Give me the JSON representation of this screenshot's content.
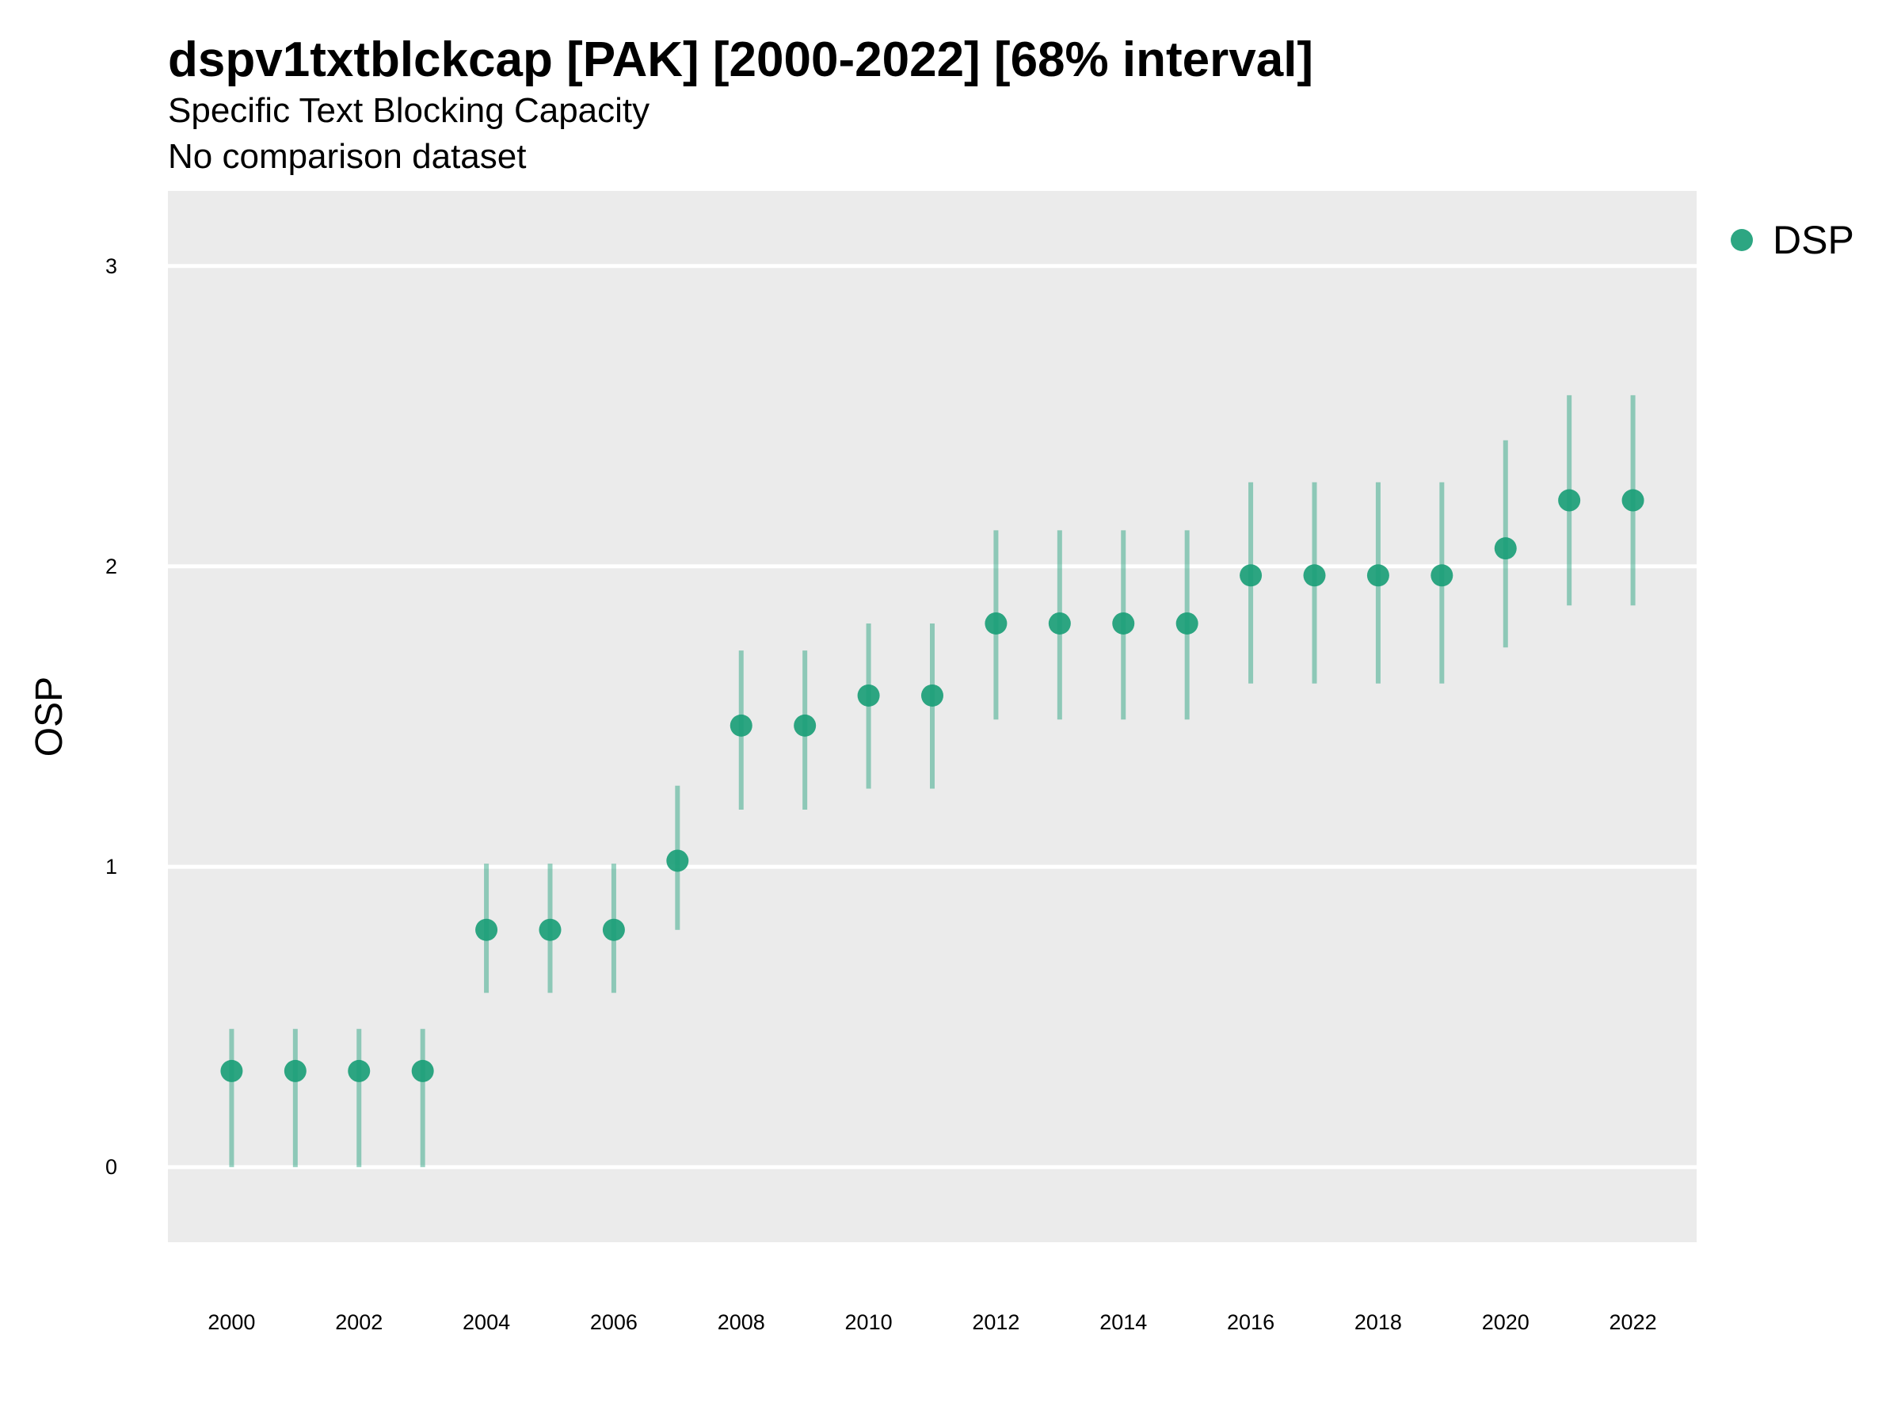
{
  "header": {
    "title": "dspv1txtblckcap [PAK] [2000-2022] [68% interval]",
    "subtitle": "Specific Text Blocking Capacity",
    "caption": "No comparison dataset"
  },
  "chart_data": {
    "type": "scatter",
    "title": "dspv1txtblckcap [PAK] [2000-2022] [68% interval]",
    "subtitle": "Specific Text Blocking Capacity",
    "caption": "No comparison dataset",
    "xlabel": "",
    "ylabel": "OSP",
    "xlim": [
      1999.0,
      2023.0
    ],
    "ylim": [
      -0.25,
      3.25
    ],
    "x_ticks": [
      2000,
      2002,
      2004,
      2006,
      2008,
      2010,
      2012,
      2014,
      2016,
      2018,
      2020,
      2022
    ],
    "y_ticks": [
      0,
      1,
      2,
      3
    ],
    "grid": true,
    "legend_position": "right",
    "colors": {
      "point": "#1b9e77",
      "panel_background": "#ebebeb",
      "grid": "#ffffff"
    },
    "series": [
      {
        "name": "DSP",
        "x": [
          2000,
          2001,
          2002,
          2003,
          2004,
          2005,
          2006,
          2007,
          2008,
          2009,
          2010,
          2011,
          2012,
          2013,
          2014,
          2015,
          2016,
          2017,
          2018,
          2019,
          2020,
          2021,
          2022
        ],
        "y": [
          0.32,
          0.32,
          0.32,
          0.32,
          0.79,
          0.79,
          0.79,
          1.02,
          1.47,
          1.47,
          1.57,
          1.57,
          1.81,
          1.81,
          1.81,
          1.81,
          1.97,
          1.97,
          1.97,
          1.97,
          2.06,
          2.22,
          2.22
        ],
        "lower": [
          0.0,
          0.0,
          0.0,
          0.0,
          0.58,
          0.58,
          0.58,
          0.79,
          1.19,
          1.19,
          1.26,
          1.26,
          1.49,
          1.49,
          1.49,
          1.49,
          1.61,
          1.61,
          1.61,
          1.61,
          1.73,
          1.87,
          1.87
        ],
        "upper": [
          0.46,
          0.46,
          0.46,
          0.46,
          1.01,
          1.01,
          1.01,
          1.27,
          1.72,
          1.72,
          1.81,
          1.81,
          2.12,
          2.12,
          2.12,
          2.12,
          2.28,
          2.28,
          2.28,
          2.28,
          2.42,
          2.57,
          2.57
        ]
      }
    ]
  }
}
